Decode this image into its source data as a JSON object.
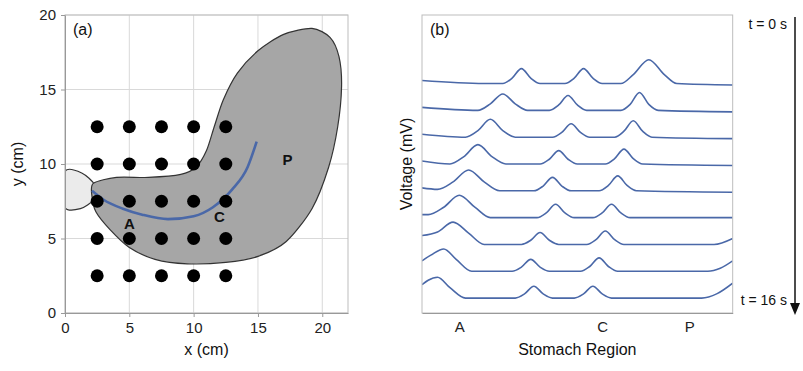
{
  "chart_data": [
    {
      "type": "scatter",
      "title": "(a)",
      "x_label": "x (cm)",
      "y_label": "y (cm)",
      "xlim": [
        0,
        22
      ],
      "ylim": [
        0,
        20
      ],
      "xticks": [
        0,
        5,
        10,
        15,
        20
      ],
      "yticks": [
        0,
        5,
        10,
        15,
        20
      ],
      "grid": true,
      "series": [
        {
          "type": "area",
          "color": "#ebebeb",
          "x": [
            0,
            1.2,
            2.2,
            2.3,
            1.3,
            0
          ],
          "values": [
            7.1,
            7.0,
            7.6,
            8.6,
            9.4,
            9.5
          ]
        },
        {
          "type": "area",
          "color": "#a6a6a6",
          "x": [
            2.2,
            4,
            6.5,
            9,
            10.2,
            11,
            11.6,
            12.3,
            13.4,
            15,
            17,
            19.2,
            20.6,
            21.3,
            21.5,
            21.2,
            20.5,
            19.2,
            17.2,
            15,
            12.5,
            9.5,
            7,
            5,
            3.5,
            2.4,
            2.1
          ],
          "values": [
            8.7,
            9.1,
            9.1,
            9.3,
            9.8,
            10.9,
            12.5,
            14.3,
            16.1,
            17.6,
            18.7,
            19.1,
            18.5,
            17.2,
            15.2,
            12.5,
            9.8,
            7,
            4.8,
            3.8,
            3.4,
            3.3,
            3.6,
            4.4,
            5.6,
            6.8,
            7.8
          ]
        },
        {
          "type": "line",
          "color": "#4a68a8",
          "x": [
            2.1,
            3,
            4.5,
            6,
            8,
            10,
            11.5,
            13,
            14.2,
            14.9
          ],
          "values": [
            8.2,
            7.6,
            7.0,
            6.6,
            6.3,
            6.5,
            7.1,
            8.3,
            9.8,
            11.5
          ]
        },
        {
          "type": "scatter",
          "color": "#000000",
          "marker": "circle",
          "x": [
            2.5,
            5,
            7.5,
            10,
            12.5,
            2.5,
            5,
            7.5,
            10,
            12.5,
            2.5,
            5,
            7.5,
            10,
            12.5,
            2.5,
            5,
            7.5,
            10,
            12.5,
            2.5,
            5,
            7.5,
            10,
            12.5
          ],
          "values": [
            12.5,
            12.5,
            12.5,
            12.5,
            12.5,
            10,
            10,
            10,
            10,
            10,
            7.5,
            7.5,
            7.5,
            7.5,
            7.5,
            5,
            5,
            5,
            5,
            5,
            2.5,
            2.5,
            2.5,
            2.5,
            2.5
          ]
        }
      ],
      "annotations": [
        {
          "text": "A",
          "x": 5,
          "y": 6.0
        },
        {
          "text": "C",
          "x": 12.0,
          "y": 6.5
        },
        {
          "text": "P",
          "x": 17.3,
          "y": 10.3
        }
      ]
    },
    {
      "type": "line",
      "title": "(b)",
      "x_label": "Stomach Region",
      "y_label": "Voltage (mV)",
      "xlim": [
        0,
        100
      ],
      "ylim": [
        0,
        10
      ],
      "xticks": [
        {
          "value": 12,
          "label": "A"
        },
        {
          "value": 58,
          "label": "C"
        },
        {
          "value": 86,
          "label": "P"
        }
      ],
      "tick_labels": "x",
      "color": "#4a68a8",
      "series": [
        {
          "x": [
            0,
            20,
            26,
            29,
            32,
            35,
            38,
            46,
            49,
            52,
            55,
            58,
            64,
            68,
            73,
            78,
            82,
            100
          ],
          "values": [
            7.8,
            7.7,
            7.7,
            7.88,
            8.2,
            7.88,
            7.7,
            7.7,
            7.88,
            8.2,
            7.88,
            7.7,
            7.7,
            8.0,
            8.5,
            8.0,
            7.7,
            7.65
          ]
        },
        {
          "x": [
            0,
            18,
            22,
            26,
            30,
            34,
            41,
            44,
            47,
            50,
            53,
            64,
            67,
            70,
            73,
            76,
            100
          ],
          "values": [
            6.9,
            6.8,
            7.02,
            7.35,
            7.02,
            6.8,
            6.8,
            6.98,
            7.3,
            6.98,
            6.8,
            6.8,
            7.0,
            7.4,
            7.0,
            6.8,
            6.75
          ]
        },
        {
          "x": [
            0,
            14,
            18,
            22,
            26,
            30,
            42,
            45,
            48,
            51,
            54,
            62,
            65,
            68,
            71,
            74,
            100
          ],
          "values": [
            6.0,
            5.9,
            6.12,
            6.5,
            6.12,
            5.9,
            5.9,
            6.06,
            6.35,
            6.06,
            5.9,
            5.9,
            6.1,
            6.45,
            6.1,
            5.9,
            5.85
          ]
        },
        {
          "x": [
            0,
            9,
            13.5,
            18,
            22.5,
            27,
            38,
            41,
            44,
            47,
            50,
            59,
            62,
            65,
            68,
            71,
            100
          ],
          "values": [
            5.1,
            5.0,
            5.25,
            5.65,
            5.25,
            5.0,
            5.0,
            5.16,
            5.45,
            5.16,
            5.0,
            5.0,
            5.18,
            5.5,
            5.18,
            5.0,
            4.95
          ]
        },
        {
          "x": [
            0,
            5,
            10,
            15,
            20,
            25,
            36,
            39,
            42,
            45,
            48,
            57,
            60,
            63,
            66,
            69,
            100
          ],
          "values": [
            4.2,
            4.15,
            4.4,
            4.8,
            4.4,
            4.1,
            4.1,
            4.26,
            4.55,
            4.26,
            4.1,
            4.1,
            4.28,
            4.6,
            4.28,
            4.1,
            4.05
          ]
        },
        {
          "x": [
            0,
            2,
            7,
            12,
            17,
            22,
            37,
            40,
            43,
            46,
            49,
            55,
            58,
            61,
            64,
            67,
            100
          ],
          "values": [
            3.3,
            3.3,
            3.55,
            3.95,
            3.55,
            3.2,
            3.2,
            3.36,
            3.65,
            3.36,
            3.2,
            3.2,
            3.36,
            3.65,
            3.36,
            3.2,
            3.2
          ]
        },
        {
          "x": [
            0,
            5,
            10,
            15,
            20,
            32,
            35,
            38,
            41,
            44,
            53,
            56,
            59,
            62,
            65,
            94,
            100
          ],
          "values": [
            2.6,
            2.72,
            3.05,
            2.68,
            2.3,
            2.3,
            2.44,
            2.7,
            2.44,
            2.3,
            2.3,
            2.46,
            2.75,
            2.46,
            2.3,
            2.3,
            2.5
          ]
        },
        {
          "x": [
            0,
            3,
            7,
            11,
            16,
            29,
            32,
            35,
            38,
            41,
            51,
            54,
            57,
            60,
            63,
            92,
            96,
            100
          ],
          "values": [
            1.75,
            1.95,
            2.15,
            1.8,
            1.4,
            1.4,
            1.54,
            1.8,
            1.54,
            1.4,
            1.4,
            1.56,
            1.85,
            1.56,
            1.4,
            1.4,
            1.5,
            1.75
          ]
        },
        {
          "x": [
            0,
            2,
            5,
            9,
            14,
            30,
            33,
            36,
            39,
            42,
            49,
            52,
            55,
            58,
            61,
            90,
            95,
            100
          ],
          "values": [
            0.95,
            1.1,
            1.2,
            0.85,
            0.5,
            0.5,
            0.64,
            0.9,
            0.64,
            0.5,
            0.5,
            0.64,
            0.9,
            0.64,
            0.5,
            0.5,
            0.65,
            1.0
          ]
        }
      ],
      "annotations": [
        {
          "text": "t = 0 s"
        },
        {
          "text": "t = 16 s"
        }
      ]
    }
  ]
}
